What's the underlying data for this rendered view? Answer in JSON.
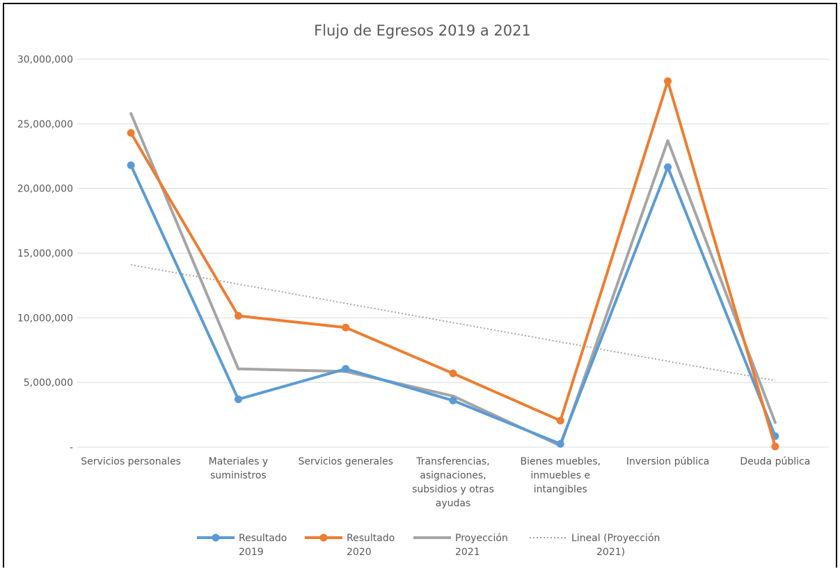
{
  "chart_data": {
    "type": "line",
    "title": "Flujo de Egresos 2019 a 2021",
    "categories": [
      [
        "Servicios personales"
      ],
      [
        "Materiales y",
        "suministros"
      ],
      [
        "Servicios generales"
      ],
      [
        "Transferencias,",
        "asignaciones,",
        "subsidios y otras",
        "ayudas"
      ],
      [
        "Bienes muebles,",
        "inmuebles e",
        "intangibles"
      ],
      [
        "Inversion pública"
      ],
      [
        "Deuda pública"
      ]
    ],
    "y_ticks": [
      "-",
      "5,000,000",
      "10,000,000",
      "15,000,000",
      "20,000,000",
      "25,000,000",
      "30,000,000"
    ],
    "ylim": [
      0,
      30000000
    ],
    "grid": true,
    "legend_position": "bottom",
    "series": [
      {
        "name": [
          "Resultado",
          "2019"
        ],
        "color": "#5b9bd5",
        "markers": true,
        "values": [
          21800000,
          3700000,
          6050000,
          3600000,
          250000,
          21650000,
          850000
        ]
      },
      {
        "name": [
          "Resultado",
          "2020"
        ],
        "color": "#ed7d31",
        "markers": true,
        "values": [
          24300000,
          10150000,
          9250000,
          5700000,
          2050000,
          28300000,
          50000
        ]
      },
      {
        "name": [
          "Proyección",
          "2021"
        ],
        "color": "#a5a5a5",
        "markers": false,
        "values": [
          25800000,
          6050000,
          5850000,
          3950000,
          100000,
          23700000,
          1900000
        ]
      }
    ],
    "trendline": {
      "name": [
        "Lineal (Proyección",
        "2021)"
      ],
      "color": "#a5a5a5",
      "start": 14100000,
      "end": 5150000
    }
  }
}
